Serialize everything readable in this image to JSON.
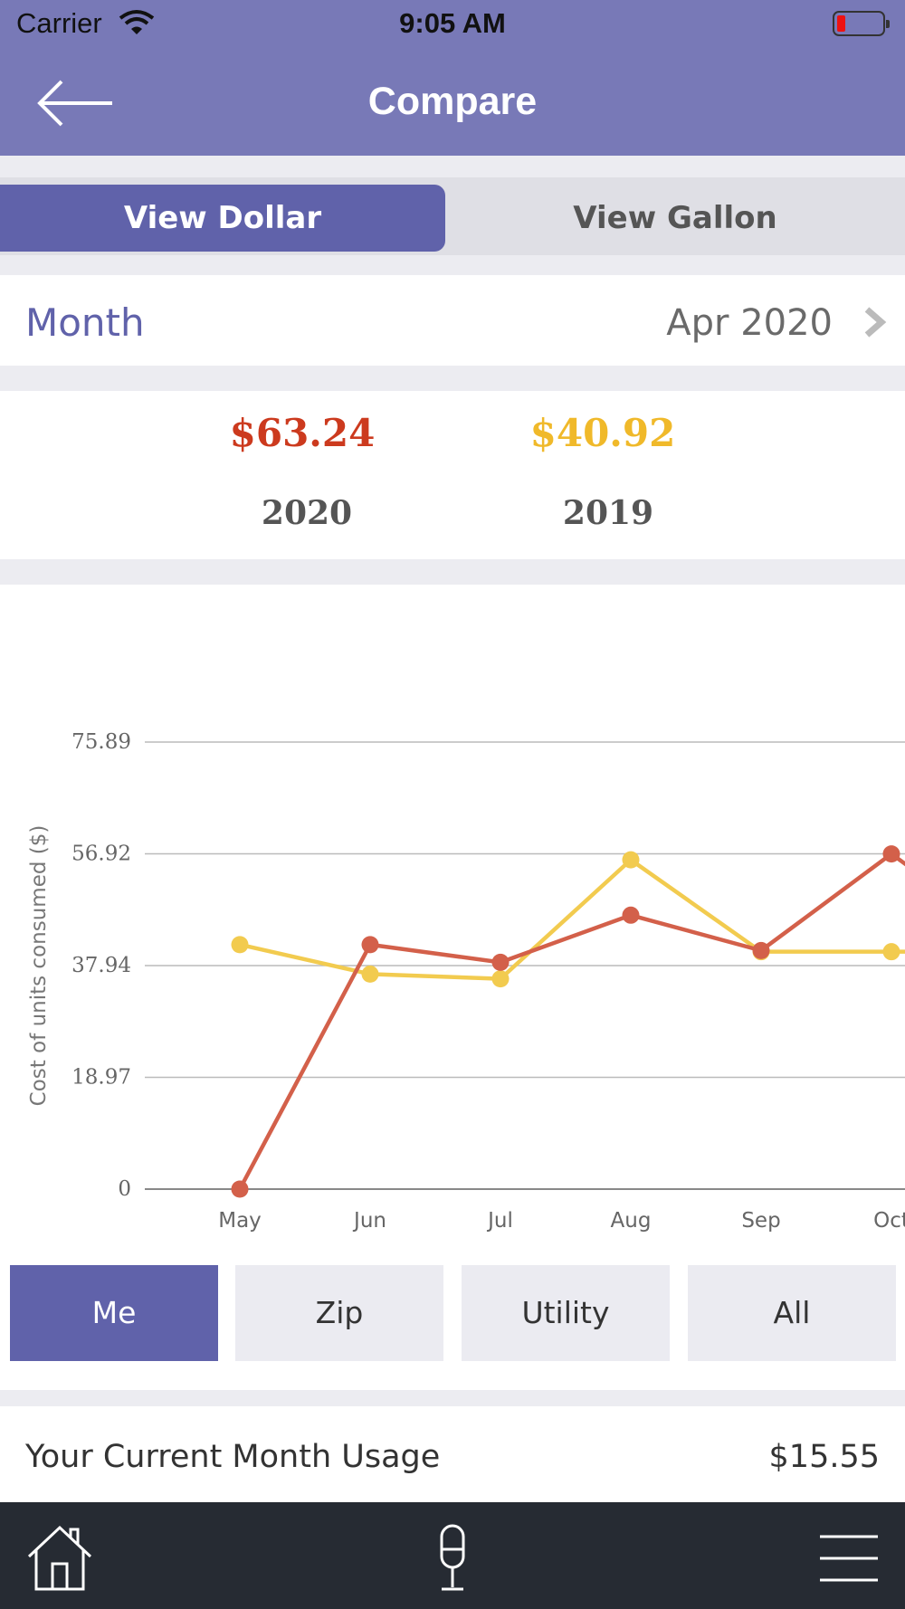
{
  "status_bar": {
    "carrier": "Carrier",
    "time": "9:05 AM",
    "wifi_icon": "wifi-icon",
    "battery_icon": "battery-low-icon"
  },
  "header": {
    "title": "Compare",
    "back_icon": "arrow-left-icon"
  },
  "view_toggle": {
    "dollar_label": "View Dollar",
    "gallon_label": "View Gallon",
    "selected": "View Dollar"
  },
  "month_selector": {
    "label": "Month",
    "value": "Apr 2020",
    "icon": "chevron-right-icon"
  },
  "totals": {
    "current": {
      "amount": "$63.24",
      "year": "2020",
      "color": "#cc3a1e"
    },
    "previous": {
      "amount": "$40.92",
      "year": "2019",
      "color": "#f0b92a"
    }
  },
  "chart_data": {
    "type": "line",
    "ylabel": "Cost of units consumed ($)",
    "categories": [
      "May",
      "Jun",
      "Jul",
      "Aug",
      "Sep",
      "Oct"
    ],
    "y_ticks": [
      "0",
      "18.97",
      "37.94",
      "56.92",
      "75.89"
    ],
    "ylim": [
      0,
      75.89
    ],
    "grid": true,
    "series": [
      {
        "values": [
          0,
          41.5,
          38.5,
          46.5,
          40.5,
          56.9
        ],
        "color": "#d3604a"
      },
      {
        "values": [
          41.5,
          36.5,
          35.7,
          55.9,
          40.3,
          40.3
        ],
        "color": "#f2cb4f"
      }
    ]
  },
  "filters": {
    "items": [
      "Me",
      "Zip",
      "Utility",
      "All"
    ],
    "selected": "Me",
    "accent": "#6062aa"
  },
  "usage": {
    "label": "Your Current Month Usage",
    "value": "$15.55"
  },
  "tab_bar": {
    "home_icon": "home-icon",
    "mic_icon": "microphone-icon",
    "menu_icon": "hamburger-menu-icon"
  }
}
